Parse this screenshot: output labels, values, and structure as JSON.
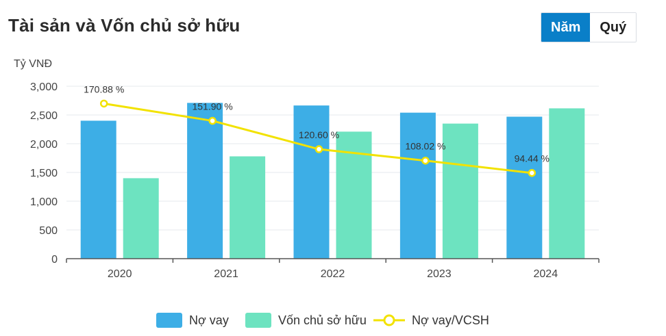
{
  "header": {
    "title": "Tài sản và Vốn chủ sở hữu",
    "period_tabs": [
      {
        "label": "Năm",
        "active": true
      },
      {
        "label": "Quý",
        "active": false
      }
    ]
  },
  "chart_data": {
    "type": "bar",
    "unit_label": "Tỷ VNĐ",
    "categories": [
      "2020",
      "2021",
      "2022",
      "2023",
      "2024"
    ],
    "ylim": [
      0,
      3000
    ],
    "yticks": [
      0,
      500,
      1000,
      1500,
      2000,
      2500,
      3000
    ],
    "ytick_labels": [
      "0",
      "500",
      "1,000",
      "1,500",
      "2,000",
      "2,500",
      "3,000"
    ],
    "grid": true,
    "legend_position": "bottom",
    "series": [
      {
        "name": "Nợ vay",
        "type": "bar",
        "color": "#3daee6",
        "values": [
          2400,
          2710,
          2665,
          2540,
          2470
        ]
      },
      {
        "name": "Vốn chủ sở hữu",
        "type": "bar",
        "color": "#6de3c0",
        "values": [
          1400,
          1780,
          2210,
          2350,
          2615
        ]
      },
      {
        "name": "Nợ vay/VCSH",
        "type": "line",
        "color": "#f2e200",
        "unit": "%",
        "values": [
          170.88,
          151.9,
          120.6,
          108.02,
          94.44
        ],
        "labels": [
          "170.88 %",
          "151.90 %",
          "120.60 %",
          "108.02 %",
          "94.44 %"
        ]
      }
    ]
  }
}
